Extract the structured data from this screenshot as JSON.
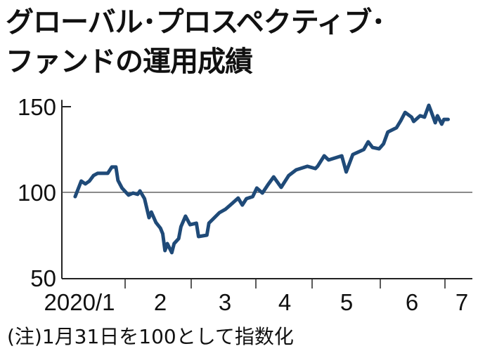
{
  "chart_data": {
    "type": "line",
    "title": [
      "グローバル･プロスペクティブ･",
      "ファンドの運用成績"
    ],
    "xlabel": "",
    "ylabel": "",
    "ylim": [
      50,
      154
    ],
    "xlim": [
      "2020-01-01",
      "2020-07-10"
    ],
    "yticks": [
      50,
      100,
      150
    ],
    "ytick_labels": [
      "50",
      "100",
      "150"
    ],
    "xtick_labels": [
      {
        "label": "2020/1",
        "month": "2020-01"
      },
      {
        "label": "2",
        "month": "2020-02"
      },
      {
        "label": "3",
        "month": "2020-03"
      },
      {
        "label": "4",
        "month": "2020-04"
      },
      {
        "label": "5",
        "month": "2020-05"
      },
      {
        "label": "6",
        "month": "2020-06"
      },
      {
        "label": "7",
        "month": "2020-07"
      }
    ],
    "reference_line": 100,
    "grid": false,
    "line_color": "#1f4a78",
    "note": "(注)1月31日を100として指数化",
    "series": [
      {
        "x": [
          "2020-01-07",
          "2020-01-10",
          "2020-01-12",
          "2020-01-14",
          "2020-01-16",
          "2020-01-18",
          "2020-01-23",
          "2020-01-25",
          "2020-01-27",
          "2020-01-28",
          "2020-01-30",
          "2020-02-02",
          "2020-02-04",
          "2020-02-06",
          "2020-02-07",
          "2020-02-09",
          "2020-02-11",
          "2020-02-12",
          "2020-02-14",
          "2020-02-16",
          "2020-02-17",
          "2020-02-18",
          "2020-02-19",
          "2020-02-21",
          "2020-02-22",
          "2020-02-24",
          "2020-02-25",
          "2020-02-27",
          "2020-02-29",
          "2020-03-03",
          "2020-03-04",
          "2020-03-08",
          "2020-03-09",
          "2020-03-14",
          "2020-03-17",
          "2020-03-20",
          "2020-03-23",
          "2020-03-25",
          "2020-03-27",
          "2020-03-30",
          "2020-04-01",
          "2020-04-04",
          "2020-04-07",
          "2020-04-10",
          "2020-04-14",
          "2020-04-18",
          "2020-04-22",
          "2020-04-28",
          "2020-05-02",
          "2020-05-03",
          "2020-05-06",
          "2020-05-08",
          "2020-05-14",
          "2020-05-16",
          "2020-05-19",
          "2020-05-24",
          "2020-05-26",
          "2020-05-28",
          "2020-05-31",
          "2020-06-02",
          "2020-06-04",
          "2020-06-08",
          "2020-06-10",
          "2020-06-12",
          "2020-06-15",
          "2020-06-16",
          "2020-06-19",
          "2020-06-21",
          "2020-06-23",
          "2020-06-24",
          "2020-06-26",
          "2020-06-27",
          "2020-06-29",
          "2020-06-30",
          "2020-07-02"
        ],
        "values": [
          97.5,
          106.6,
          104.9,
          106.6,
          109.8,
          111.1,
          111.1,
          114.8,
          114.8,
          107.0,
          102.5,
          98.4,
          99.6,
          98.8,
          100.8,
          96.3,
          85.2,
          88.5,
          82.4,
          79.1,
          75.8,
          66.0,
          70.1,
          64.8,
          70.1,
          73.0,
          79.9,
          86.1,
          81.1,
          82.0,
          74.2,
          75.0,
          82.0,
          88.1,
          90.2,
          93.4,
          96.7,
          92.6,
          96.3,
          97.5,
          102.5,
          99.6,
          104.5,
          109.0,
          102.9,
          109.8,
          113.1,
          115.2,
          113.9,
          115.2,
          121.3,
          118.9,
          121.3,
          111.9,
          122.1,
          125.0,
          129.5,
          126.2,
          125.4,
          128.3,
          135.2,
          137.7,
          141.8,
          146.7,
          143.9,
          141.4,
          144.7,
          143.9,
          150.8,
          147.5,
          140.6,
          144.7,
          139.8,
          142.6,
          142.6
        ]
      }
    ]
  }
}
